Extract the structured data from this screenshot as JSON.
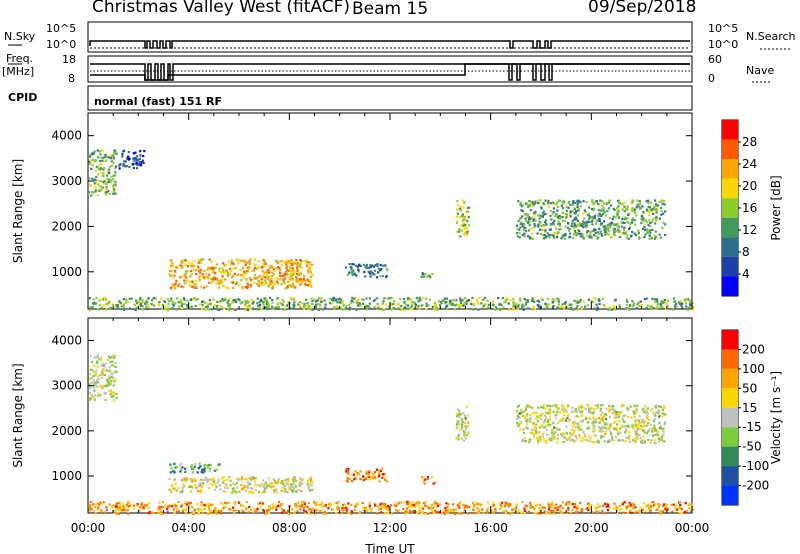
{
  "header": {
    "station": "Christmas Valley West (fitACF)",
    "beam": "Beam 15",
    "date": "09/Sep/2018"
  },
  "status_panel": {
    "nsky_label": "N.Sky",
    "nsky_ticks": [
      "10^5",
      "10^0"
    ],
    "nsearch_label": "N.Search",
    "nsearch_ticks": [
      "10^5",
      "10^0"
    ],
    "freq_label": "Freq.",
    "freq_unit": "[MHz]",
    "freq_ticks": [
      "18",
      "8"
    ],
    "nave_label": "Nave",
    "nave_ticks": [
      "60",
      "0"
    ],
    "cpid_label": "CPID",
    "cpid_value": "normal (fast) 151 RF"
  },
  "chart_data": [
    {
      "type": "heatmap",
      "name": "power",
      "ylabel": "Slant Range [km]",
      "yticks": [
        "4000",
        "3000",
        "2000",
        "1000"
      ],
      "ylim": [
        180,
        4500
      ],
      "xlim": [
        0,
        24
      ],
      "colorbar_label": "Power [dB]",
      "colorbar_ticks": [
        "28",
        "24",
        "20",
        "16",
        "12",
        "8",
        "4"
      ],
      "colorscale": [
        "#0000ff",
        "#1c3fa8",
        "#2f6e8c",
        "#3f9a5c",
        "#8ccd2d",
        "#ffd700",
        "#ffa500",
        "#ff5a00",
        "#ff0000"
      ],
      "regions": [
        {
          "t0": 0.0,
          "t1": 1.1,
          "r0": 2700,
          "r1": 3700,
          "level": 0.45
        },
        {
          "t0": 1.2,
          "t1": 2.2,
          "r0": 3300,
          "r1": 3700,
          "level": 0.2
        },
        {
          "t0": 3.2,
          "t1": 8.9,
          "r0": 650,
          "r1": 1300,
          "level": 0.7
        },
        {
          "t0": 10.2,
          "t1": 11.9,
          "r0": 900,
          "r1": 1200,
          "level": 0.3
        },
        {
          "t0": 13.2,
          "t1": 13.8,
          "r0": 850,
          "r1": 1000,
          "level": 0.35
        },
        {
          "t0": 14.6,
          "t1": 15.1,
          "r0": 1800,
          "r1": 2600,
          "level": 0.5
        },
        {
          "t0": 17.0,
          "t1": 22.9,
          "r0": 1750,
          "r1": 2600,
          "level": 0.4
        },
        {
          "t0": 0.0,
          "t1": 24.0,
          "r0": 180,
          "r1": 450,
          "level": 0.45
        }
      ]
    },
    {
      "type": "heatmap",
      "name": "velocity",
      "xlabel": "Time UT",
      "xticks": [
        "00:00",
        "04:00",
        "08:00",
        "12:00",
        "16:00",
        "20:00",
        "00:00"
      ],
      "ylabel": "Slant Range [km]",
      "yticks": [
        "4000",
        "3000",
        "2000",
        "1000"
      ],
      "ylim": [
        180,
        4500
      ],
      "xlim": [
        0,
        24
      ],
      "colorbar_label": "Velocity [m s⁻¹]",
      "colorbar_ticks": [
        "200",
        "100",
        "50",
        "15",
        "-15",
        "-50",
        "-100",
        "-200"
      ],
      "colorscale": [
        "#0033ff",
        "#1f4fa0",
        "#2e8b57",
        "#7ccd3c",
        "#c0c0c0",
        "#ffd700",
        "#ffa500",
        "#ff6a00",
        "#ff0000"
      ],
      "regions": [
        {
          "t0": 0.0,
          "t1": 1.1,
          "r0": 2700,
          "r1": 3700,
          "level": 0.5
        },
        {
          "t0": 3.2,
          "t1": 5.2,
          "r0": 1100,
          "r1": 1300,
          "level": 0.3
        },
        {
          "t0": 3.2,
          "t1": 8.9,
          "r0": 650,
          "r1": 1000,
          "level": 0.55
        },
        {
          "t0": 10.2,
          "t1": 11.9,
          "r0": 900,
          "r1": 1200,
          "level": 0.8
        },
        {
          "t0": 13.2,
          "t1": 13.8,
          "r0": 850,
          "r1": 1000,
          "level": 0.78
        },
        {
          "t0": 14.6,
          "t1": 15.1,
          "r0": 1800,
          "r1": 2600,
          "level": 0.5
        },
        {
          "t0": 17.0,
          "t1": 22.9,
          "r0": 1750,
          "r1": 2600,
          "level": 0.5
        },
        {
          "t0": 0.0,
          "t1": 24.0,
          "r0": 180,
          "r1": 450,
          "level": 0.75
        }
      ]
    }
  ]
}
